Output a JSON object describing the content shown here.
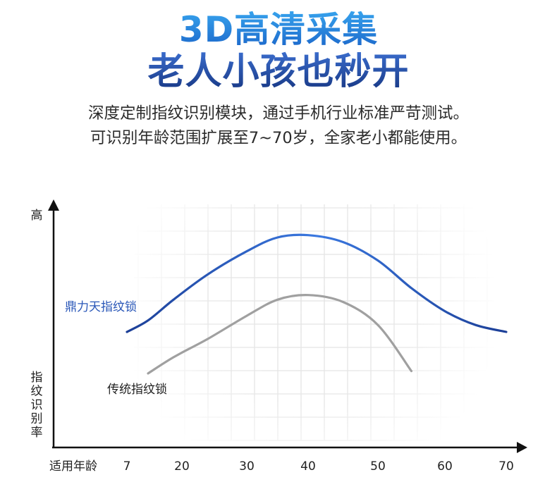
{
  "headline": {
    "line1": "3D高清采集",
    "line2": "老人小孩也秒开"
  },
  "description": {
    "line1": "深度定制指纹识别模块，通过手机行业标准严苛测试。",
    "line2": "可识别年龄范围扩展至7~70岁，全家老小都能使用。"
  },
  "chart_data": {
    "type": "line",
    "xlabel": "适用年龄",
    "ylabel": "指纹识别率",
    "y_top_label": "高",
    "x_ticks": [
      7,
      20,
      30,
      40,
      50,
      60,
      70
    ],
    "xlim": [
      7,
      70
    ],
    "ylim": [
      0,
      100
    ],
    "grid": "faded background grid",
    "series": [
      {
        "name": "鼎力天指纹锁",
        "color": "#1e49a6",
        "points": [
          [
            7,
            48
          ],
          [
            12,
            53
          ],
          [
            18,
            62
          ],
          [
            24,
            73
          ],
          [
            30,
            83
          ],
          [
            35,
            89
          ],
          [
            40,
            90
          ],
          [
            45,
            87
          ],
          [
            50,
            79
          ],
          [
            55,
            67
          ],
          [
            60,
            57
          ],
          [
            65,
            51
          ],
          [
            70,
            48
          ]
        ]
      },
      {
        "name": "传统指纹锁",
        "color": "#a0a0a0",
        "points": [
          [
            12,
            30
          ],
          [
            18,
            37
          ],
          [
            24,
            45
          ],
          [
            30,
            55
          ],
          [
            35,
            62
          ],
          [
            40,
            64
          ],
          [
            45,
            61
          ],
          [
            50,
            51
          ],
          [
            55,
            31
          ]
        ]
      }
    ]
  }
}
